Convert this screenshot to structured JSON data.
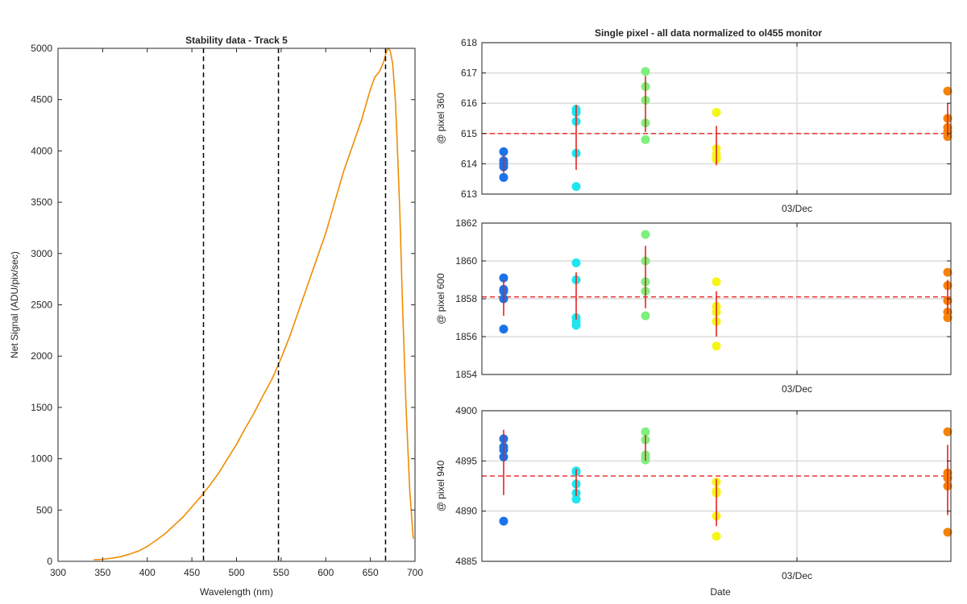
{
  "figure": {
    "left_title": "Stability data - Track 5",
    "right_title": "Single pixel - all data normalized to ol455 monitor"
  },
  "chart_data": [
    {
      "type": "line",
      "title": "Stability data - Track 5",
      "xlabel": "Wavelength (nm)",
      "ylabel": "Net Signal (ADU/pix/sec)",
      "xlim": [
        300,
        700
      ],
      "ylim": [
        0,
        5000
      ],
      "xticks": [
        300,
        350,
        400,
        450,
        500,
        550,
        600,
        650,
        700
      ],
      "yticks": [
        0,
        500,
        1000,
        1500,
        2000,
        2500,
        3000,
        3500,
        4000,
        4500,
        5000
      ],
      "grid": false,
      "series": [
        {
          "color": "#f08c00",
          "x": [
            340,
            350,
            360,
            370,
            380,
            390,
            400,
            410,
            420,
            430,
            440,
            450,
            460,
            470,
            480,
            490,
            500,
            510,
            520,
            530,
            540,
            550,
            560,
            570,
            580,
            590,
            600,
            610,
            620,
            630,
            640,
            650,
            655,
            660,
            665,
            668,
            670,
            672,
            675,
            678,
            680,
            683,
            686,
            690,
            694,
            698
          ],
          "y": [
            15,
            20,
            30,
            45,
            70,
            100,
            145,
            205,
            270,
            350,
            430,
            530,
            630,
            740,
            860,
            1000,
            1140,
            1300,
            1450,
            1620,
            1780,
            1980,
            2200,
            2450,
            2700,
            2950,
            3200,
            3500,
            3800,
            4050,
            4300,
            4600,
            4720,
            4770,
            4870,
            4970,
            5000,
            4980,
            4850,
            4500,
            4100,
            3400,
            2500,
            1500,
            700,
            220
          ]
        }
      ],
      "vlines": [
        463,
        547,
        667
      ]
    },
    {
      "type": "scatter",
      "title": "Single pixel - all data normalized to ol455 monitor",
      "ylabel": "@ pixel 360",
      "xticklabels": [
        "03/Dec"
      ],
      "ylim": [
        613,
        618
      ],
      "yticks": [
        613,
        614,
        615,
        616,
        617,
        618
      ],
      "grid": true,
      "mean": 615,
      "groups": [
        {
          "color": "#1a73e8",
          "values": [
            614.4,
            614.1,
            614.0,
            613.9,
            613.55
          ],
          "err_low": 613.7,
          "err_high": 614.3
        },
        {
          "color": "#1ee6ee",
          "values": [
            615.8,
            615.7,
            615.4,
            614.35,
            613.25
          ],
          "err_low": 613.8,
          "err_high": 615.95
        },
        {
          "color": "#7ef07e",
          "values": [
            617.05,
            616.55,
            616.1,
            615.35,
            614.8
          ],
          "err_low": 615.05,
          "err_high": 616.9
        },
        {
          "color": "#f5f518",
          "values": [
            615.7,
            614.5,
            614.3,
            614.2,
            614.15
          ],
          "err_low": 613.95,
          "err_high": 615.25
        },
        {
          "color": "#f5820a",
          "values": [
            616.4,
            615.5,
            615.2,
            615.05,
            614.9
          ],
          "err_low": 614.9,
          "err_high": 616.0
        }
      ]
    },
    {
      "type": "scatter",
      "ylabel": "@ pixel 600",
      "xticklabels": [
        "03/Dec"
      ],
      "ylim": [
        1854,
        1862
      ],
      "yticks": [
        1854,
        1856,
        1858,
        1860,
        1862
      ],
      "grid": true,
      "mean": 1858.1,
      "groups": [
        {
          "color": "#1a73e8",
          "values": [
            1859.1,
            1858.5,
            1858.4,
            1858.0,
            1856.4
          ],
          "err_low": 1857.1,
          "err_high": 1859.0
        },
        {
          "color": "#1ee6ee",
          "values": [
            1859.9,
            1859.0,
            1857.0,
            1856.8,
            1856.6
          ],
          "err_low": 1856.9,
          "err_high": 1859.4
        },
        {
          "color": "#7ef07e",
          "values": [
            1861.4,
            1860.0,
            1858.9,
            1858.4,
            1857.1
          ],
          "err_low": 1857.5,
          "err_high": 1860.8
        },
        {
          "color": "#f5f518",
          "values": [
            1858.9,
            1857.6,
            1857.3,
            1856.8,
            1855.5
          ],
          "err_low": 1856.0,
          "err_high": 1858.4
        },
        {
          "color": "#f5820a",
          "values": [
            1859.4,
            1858.7,
            1857.9,
            1857.3,
            1857.0
          ],
          "err_low": 1857.2,
          "err_high": 1859.0
        }
      ]
    },
    {
      "type": "scatter",
      "xlabel": "Date",
      "ylabel": "@ pixel 940",
      "xticklabels": [
        "03/Dec"
      ],
      "ylim": [
        4885,
        4900
      ],
      "yticks": [
        4885,
        4890,
        4895,
        4900
      ],
      "grid": true,
      "mean": 4893.5,
      "groups": [
        {
          "color": "#1a73e8",
          "values": [
            4897.2,
            4896.4,
            4896.1,
            4895.4,
            4889.0
          ],
          "err_low": 4891.6,
          "err_high": 4898.1
        },
        {
          "color": "#1ee6ee",
          "values": [
            4894.0,
            4893.9,
            4892.7,
            4891.8,
            4891.2
          ],
          "err_low": 4891.5,
          "err_high": 4894.2
        },
        {
          "color": "#7ef07e",
          "values": [
            4897.9,
            4897.1,
            4895.6,
            4895.3,
            4895.1
          ],
          "err_low": 4895.0,
          "err_high": 4897.6
        },
        {
          "color": "#f5f518",
          "values": [
            4892.9,
            4892.0,
            4891.8,
            4889.5,
            4887.5
          ],
          "err_low": 4888.5,
          "err_high": 4893.2
        },
        {
          "color": "#f5820a",
          "values": [
            4897.9,
            4893.8,
            4893.3,
            4892.5,
            4887.9
          ],
          "err_low": 4889.6,
          "err_high": 4896.6
        }
      ]
    }
  ]
}
